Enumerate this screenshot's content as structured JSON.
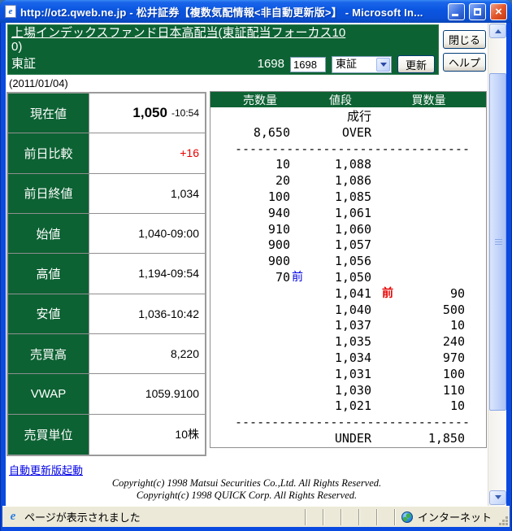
{
  "window": {
    "title": "http://ot2.qweb.ne.jp - 松井証券【複数気配情報<非自動更新版>】 - Microsoft In..."
  },
  "header": {
    "title_line1": "上場インデックスファンド日本高配当(東証配当フォーカス10",
    "title_line2": "0)",
    "exchange": "東証",
    "code_label": "1698",
    "code_input_value": "1698",
    "market_select_value": "東証",
    "update_button": "更新",
    "close_button": "閉じる",
    "help_button": "ヘルプ"
  },
  "date_line": "(2011/01/04)",
  "quote_table": {
    "rows": [
      {
        "label": "現在値",
        "value": "1,050",
        "extra": "-10:54",
        "vcls": "big"
      },
      {
        "label": "前日比較",
        "value": "+16",
        "extra": "",
        "vcls": "red"
      },
      {
        "label": "前日終値",
        "value": "1,034",
        "extra": ""
      },
      {
        "label": "始値",
        "value": "1,040-09:00",
        "extra": ""
      },
      {
        "label": "高値",
        "value": "1,194-09:54",
        "extra": ""
      },
      {
        "label": "安値",
        "value": "1,036-10:42",
        "extra": ""
      },
      {
        "label": "売買高",
        "value": "8,220",
        "extra": ""
      },
      {
        "label": "VWAP",
        "value": "1059.9100",
        "extra": ""
      },
      {
        "label": "売買単位",
        "value": "10株",
        "extra": ""
      }
    ]
  },
  "order_book": {
    "headers": [
      "売数量",
      "値段",
      "買数量"
    ],
    "lines": [
      {
        "s": "",
        "sm": "",
        "p": "成行",
        "bm": "",
        "b": ""
      },
      {
        "s": "8,650",
        "sm": "",
        "p": "OVER",
        "bm": "",
        "b": ""
      },
      {
        "cls": "sep",
        "dash": "--------------------------------"
      },
      {
        "s": "10",
        "sm": "",
        "p": "1,088",
        "bm": "",
        "b": ""
      },
      {
        "s": "20",
        "sm": "",
        "p": "1,086",
        "bm": "",
        "b": ""
      },
      {
        "s": "100",
        "sm": "",
        "p": "1,085",
        "bm": "",
        "b": ""
      },
      {
        "s": "940",
        "sm": "",
        "p": "1,061",
        "bm": "",
        "b": ""
      },
      {
        "s": "910",
        "sm": "",
        "p": "1,060",
        "bm": "",
        "b": ""
      },
      {
        "s": "900",
        "sm": "",
        "p": "1,057",
        "bm": "",
        "b": ""
      },
      {
        "s": "900",
        "sm": "",
        "p": "1,056",
        "bm": "",
        "b": ""
      },
      {
        "s": "70",
        "sm": "前",
        "p": "1,050",
        "bm": "",
        "b": ""
      },
      {
        "s": "",
        "sm": "",
        "p": "1,041",
        "bm": "前",
        "b": "90"
      },
      {
        "s": "",
        "sm": "",
        "p": "1,040",
        "bm": "",
        "b": "500"
      },
      {
        "s": "",
        "sm": "",
        "p": "1,037",
        "bm": "",
        "b": "10"
      },
      {
        "s": "",
        "sm": "",
        "p": "1,035",
        "bm": "",
        "b": "240"
      },
      {
        "s": "",
        "sm": "",
        "p": "1,034",
        "bm": "",
        "b": "970"
      },
      {
        "s": "",
        "sm": "",
        "p": "1,031",
        "bm": "",
        "b": "100"
      },
      {
        "s": "",
        "sm": "",
        "p": "1,030",
        "bm": "",
        "b": "110"
      },
      {
        "s": "",
        "sm": "",
        "p": "1,021",
        "bm": "",
        "b": "10"
      },
      {
        "cls": "sep",
        "dash": "--------------------------------"
      },
      {
        "s": "",
        "sm": "",
        "p": "UNDER",
        "bm": "",
        "b": "1,850"
      }
    ]
  },
  "footer": {
    "auto_update_link": "自動更新版起動",
    "copyright_line1": "Copyright(c) 1998 Matsui Securities Co.,Ltd. All Rights Reserved.",
    "copyright_line2": "Copyright(c) 1998 QUICK Corp. All Rights Reserved."
  },
  "statusbar": {
    "left_text": "ページが表示されました",
    "right_text": "インターネット"
  },
  "colors": {
    "brand_green": "#0d6233",
    "up_red": "#e80000",
    "marker_blue": "#0000e6",
    "titlebar_blue": "#0b55e0"
  }
}
